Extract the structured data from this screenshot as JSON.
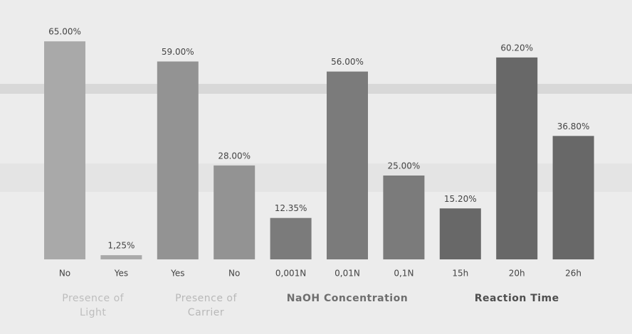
{
  "chart_data": {
    "type": "bar",
    "groups": [
      {
        "name": "Presence of Light",
        "color": "#a9a9a9",
        "label_color": "#bdbdbd",
        "categories": [
          "No",
          "Yes"
        ],
        "values": [
          65,
          1.25
        ],
        "value_labels": [
          "65.00%",
          "1,25%"
        ]
      },
      {
        "name": "Presence of Carrier",
        "color": "#939393",
        "label_color": "#b8b8b8",
        "categories": [
          "Yes",
          "No"
        ],
        "values": [
          59,
          28
        ],
        "value_labels": [
          "59.00%",
          "28.00%"
        ]
      },
      {
        "name": "NaOH Concentration",
        "color": "#7b7b7b",
        "label_color": "#6e6e6e",
        "categories": [
          "0,001N",
          "0,01N",
          "0,1N"
        ],
        "values": [
          12.35,
          56,
          25
        ],
        "value_labels": [
          "12.35%",
          "56.00%",
          "25.00%"
        ]
      },
      {
        "name": "Reaction Time",
        "color": "#686868",
        "label_color": "#4f4f4f",
        "categories": [
          "15h",
          "20h",
          "26h"
        ],
        "values": [
          15.2,
          60.2,
          36.8
        ],
        "value_labels": [
          "15.20%",
          "60.20%",
          "36.80%"
        ]
      }
    ]
  }
}
